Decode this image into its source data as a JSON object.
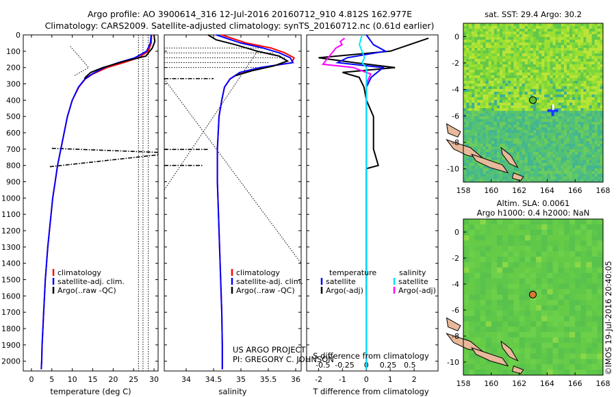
{
  "title": {
    "line1": "Argo profile: AO 3900614_316 12-Jul-2016 20160712_910 4.812S 162.977E",
    "line2": "Climatology: CARS2009. Satellite-adjusted climatology: synTS_20160712.nc (0.61d earlier)"
  },
  "credits": {
    "project": "US ARGO PROJECT",
    "pi": "PI: GREGORY C. JOHNSON",
    "stamp": "©IMOS 19-Jul-2016 20:40:05"
  },
  "colors": {
    "climatology": "#ff0000",
    "satellite": "#0000ff",
    "argo": "#000000",
    "satellite_salinity": "#00e5ff",
    "argo_adj_salinity": "#ff00ff",
    "land": "#e8b89a",
    "float": "#d97a30"
  },
  "depth_axis": {
    "ticks": [
      "0",
      "100",
      "200",
      "300",
      "400",
      "500",
      "600",
      "700",
      "800",
      "900",
      "1000",
      "1100",
      "1200",
      "1300",
      "1400",
      "1500",
      "1600",
      "1700",
      "1800",
      "1900",
      "2000"
    ]
  },
  "chart_data": [
    {
      "id": "temperature",
      "type": "line",
      "xlabel": "temperature (deg C)",
      "ylabel": "",
      "xlim": [
        -2,
        31
      ],
      "ylim": [
        2060,
        0
      ],
      "xticks": [
        "0",
        "5",
        "10",
        "15",
        "20",
        "25",
        "30"
      ],
      "legend": [
        "climatology",
        "satellite-adj. clim.",
        "Argo(..raw -QC)"
      ],
      "legend_position": "lower-center",
      "series": [
        {
          "name": "climatology",
          "depth": [
            0,
            50,
            100,
            140,
            170,
            200,
            240,
            270,
            320,
            400,
            500,
            600,
            700,
            800,
            900,
            1000,
            1100,
            1200,
            1300,
            1400,
            1500,
            1600,
            1700,
            1800,
            1900,
            2000,
            2050
          ],
          "values": [
            29.4,
            29.3,
            28.6,
            26.2,
            22.5,
            18.5,
            15.0,
            13.2,
            11.6,
            10.0,
            8.8,
            8.0,
            7.2,
            6.4,
            5.8,
            5.2,
            4.8,
            4.4,
            4.0,
            3.7,
            3.4,
            3.2,
            3.0,
            2.8,
            2.6,
            2.5,
            2.4
          ]
        },
        {
          "name": "satellite-adj. clim.",
          "depth": [
            0,
            50,
            100,
            140,
            170,
            200,
            240,
            270,
            320,
            400,
            500,
            600,
            700,
            800,
            900,
            1000,
            1100,
            1200,
            1300,
            1400,
            1500,
            1600,
            1700,
            1800,
            1900,
            2000,
            2050
          ],
          "values": [
            29.3,
            29.1,
            28.2,
            25.3,
            21.3,
            17.8,
            14.8,
            13.1,
            11.5,
            10.0,
            8.8,
            8.0,
            7.2,
            6.4,
            5.8,
            5.2,
            4.8,
            4.4,
            4.0,
            3.7,
            3.4,
            3.2,
            3.0,
            2.8,
            2.6,
            2.5,
            2.4
          ]
        },
        {
          "name": "Argo(..raw -QC)",
          "depth": [
            0,
            40,
            80,
            130,
            160,
            200,
            230,
            260,
            270
          ],
          "values": [
            30.0,
            30.2,
            29.6,
            28.0,
            23.0,
            17.5,
            14.5,
            13.2,
            13.0
          ]
        }
      ]
    },
    {
      "id": "salinity",
      "type": "line",
      "xlabel": "salinity",
      "ylabel": "",
      "xlim": [
        33.6,
        36.1
      ],
      "ylim": [
        2060,
        0
      ],
      "xticks": [
        "34",
        "34.5",
        "35",
        "35.5",
        "36"
      ],
      "legend": [
        "climatology",
        "satellite-adj. clim.",
        "Argo(..raw -QC)"
      ],
      "legend_position": "lower-center",
      "series": [
        {
          "name": "climatology",
          "depth": [
            0,
            50,
            80,
            110,
            140,
            170,
            200,
            230,
            270,
            320,
            400,
            500,
            700,
            900,
            1100,
            1400,
            1700,
            1900,
            2050
          ],
          "values": [
            34.65,
            35.1,
            35.55,
            35.8,
            35.97,
            35.93,
            35.4,
            35.0,
            34.8,
            34.7,
            34.65,
            34.6,
            34.57,
            34.57,
            34.59,
            34.62,
            34.65,
            34.66,
            34.66
          ]
        },
        {
          "name": "satellite-adj. clim.",
          "depth": [
            0,
            50,
            80,
            110,
            140,
            170,
            200,
            230,
            270,
            320,
            400,
            500,
            700,
            900,
            1100,
            1400,
            1700,
            1900,
            2050
          ],
          "values": [
            34.55,
            35.0,
            35.4,
            35.7,
            35.9,
            35.95,
            35.35,
            34.98,
            34.8,
            34.7,
            34.65,
            34.6,
            34.57,
            34.57,
            34.59,
            34.62,
            34.65,
            34.66,
            34.66
          ]
        },
        {
          "name": "Argo(..raw -QC)",
          "depth": [
            0,
            30,
            60,
            100,
            130,
            160,
            190,
            220,
            250
          ],
          "values": [
            34.4,
            34.55,
            34.9,
            35.3,
            35.7,
            35.85,
            35.6,
            35.2,
            34.9
          ]
        }
      ]
    },
    {
      "id": "differences",
      "type": "line",
      "xlabel_top": "S difference from climatology",
      "xlabel": "T difference from climatology",
      "ylim": [
        2060,
        0
      ],
      "t_xlim": [
        -2.5,
        3.0
      ],
      "t_xticks": [
        "-2",
        "-1",
        "0",
        "1",
        "2"
      ],
      "s_xlim": [
        -0.6875,
        0.825
      ],
      "s_xticks": [
        "-0.5",
        "-0.25",
        "0",
        "0.25",
        "0.5"
      ],
      "legend": {
        "temperature_header": "temperature",
        "salinity_header": "salinity",
        "t_satellite": "satellite",
        "t_argo": "Argo(-adj)",
        "s_satellite": "satellite",
        "s_argo": "Argo(-adj)"
      },
      "series": [
        {
          "name": "temperature satellite",
          "depth": [
            0,
            60,
            100,
            140,
            170,
            200,
            260,
            320,
            500,
            700,
            900,
            1100,
            1300,
            1500,
            1700,
            1900,
            2050
          ],
          "values": [
            0.0,
            0.3,
            0.8,
            -0.8,
            -1.2,
            0.7,
            0.2,
            0.0,
            0.0,
            0.0,
            0.0,
            0.0,
            0.0,
            0.0,
            0.0,
            0.0,
            0.0
          ]
        },
        {
          "name": "temperature Argo(-adj)",
          "depth": [
            20,
            60,
            100,
            140,
            170,
            200,
            230,
            260,
            320,
            400,
            500,
            700,
            800,
            820,
            1000,
            1200,
            1400,
            1600
          ],
          "values": [
            2.6,
            1.8,
            1.0,
            -2.0,
            -0.5,
            1.2,
            -1.0,
            -0.3,
            -0.1,
            0.0,
            0.3,
            0.3,
            0.5,
            0.0,
            0.0,
            0.0,
            0.0,
            0.0
          ]
        },
        {
          "name": "salinity satellite",
          "depth": [
            0,
            60,
            100,
            140,
            170,
            200,
            260,
            320,
            500,
            700,
            900,
            1100,
            1300,
            1500,
            1700,
            1900,
            2050
          ],
          "values": [
            -0.05,
            -0.08,
            -0.05,
            -0.02,
            -0.05,
            0.0,
            0.0,
            0.0,
            0.0,
            0.0,
            0.0,
            0.0,
            0.0,
            0.0,
            0.0,
            0.0,
            0.0
          ]
        },
        {
          "name": "salinity Argo(-adj)",
          "depth": [
            20,
            40,
            60,
            80,
            180,
            200,
            240,
            300,
            400
          ],
          "values": [
            -0.25,
            -0.3,
            -0.28,
            -0.35,
            -0.5,
            -0.15,
            0.05,
            0.0,
            0.0
          ]
        }
      ]
    },
    {
      "id": "sst_map",
      "type": "heatmap",
      "title": "sat. SST: 29.4  Argo: 30.2",
      "xlim": [
        158,
        168
      ],
      "ylim": [
        -11,
        1
      ],
      "xticks": [
        "158",
        "160",
        "162",
        "164",
        "166",
        "168"
      ],
      "yticks": [
        "0",
        "-2",
        "-4",
        "-6",
        "-8",
        "-10"
      ],
      "float_position": [
        162.977,
        -4.812
      ]
    },
    {
      "id": "sla_map",
      "type": "heatmap",
      "title_line1": "Altim. SLA: 0.0061",
      "title_line2": "Argo h1000: 0.4 h2000: NaN",
      "xlim": [
        158,
        168
      ],
      "ylim": [
        -11,
        1
      ],
      "xticks": [
        "158",
        "160",
        "162",
        "164",
        "166",
        "168"
      ],
      "yticks": [
        "0",
        "-2",
        "-4",
        "-6",
        "-8",
        "-10"
      ],
      "float_position": [
        162.977,
        -4.812
      ]
    }
  ]
}
